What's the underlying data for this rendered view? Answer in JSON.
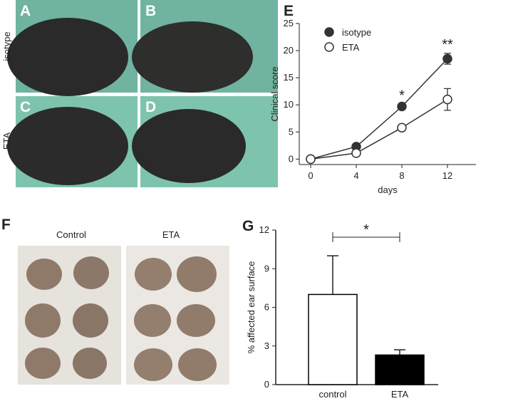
{
  "panel_labels": [
    "A",
    "B",
    "C",
    "D",
    "E",
    "F",
    "G"
  ],
  "photo_row_labels": [
    "isotype",
    "ETA"
  ],
  "ear_group_labels": [
    "Control",
    "ETA"
  ],
  "chart_data": [
    {
      "type": "line",
      "xlabel": "days",
      "ylabel": "Clinical score",
      "x": [
        0,
        4,
        8,
        12
      ],
      "xlim": [
        -1,
        14.5
      ],
      "xticks": [
        0,
        4,
        8,
        12
      ],
      "ylim": [
        -1,
        25
      ],
      "yticks": [
        0,
        5,
        10,
        15,
        20,
        25
      ],
      "legend": "top-left",
      "series": [
        {
          "name": "isotype",
          "color": "#333333",
          "fill": "#333333",
          "values": [
            0,
            2.3,
            9.7,
            18.5
          ],
          "errors": [
            0,
            0.3,
            0.4,
            1.0
          ]
        },
        {
          "name": "ETA",
          "color": "#333333",
          "fill": "#ffffff",
          "values": [
            0,
            1.1,
            5.8,
            11.0
          ],
          "errors": [
            0,
            0.2,
            0.3,
            2.0
          ]
        }
      ],
      "annotations": [
        {
          "x": 8,
          "text": "*"
        },
        {
          "x": 12,
          "text": "**"
        }
      ]
    },
    {
      "type": "bar",
      "ylabel": "% affected ear surface",
      "categories": [
        "control",
        "ETA"
      ],
      "values": [
        7.0,
        2.3
      ],
      "errors": [
        3.0,
        0.4
      ],
      "colors": [
        "#ffffff",
        "#000000"
      ],
      "ylim": [
        0,
        12
      ],
      "yticks": [
        0,
        3,
        6,
        9,
        12
      ],
      "significance": "*"
    }
  ]
}
